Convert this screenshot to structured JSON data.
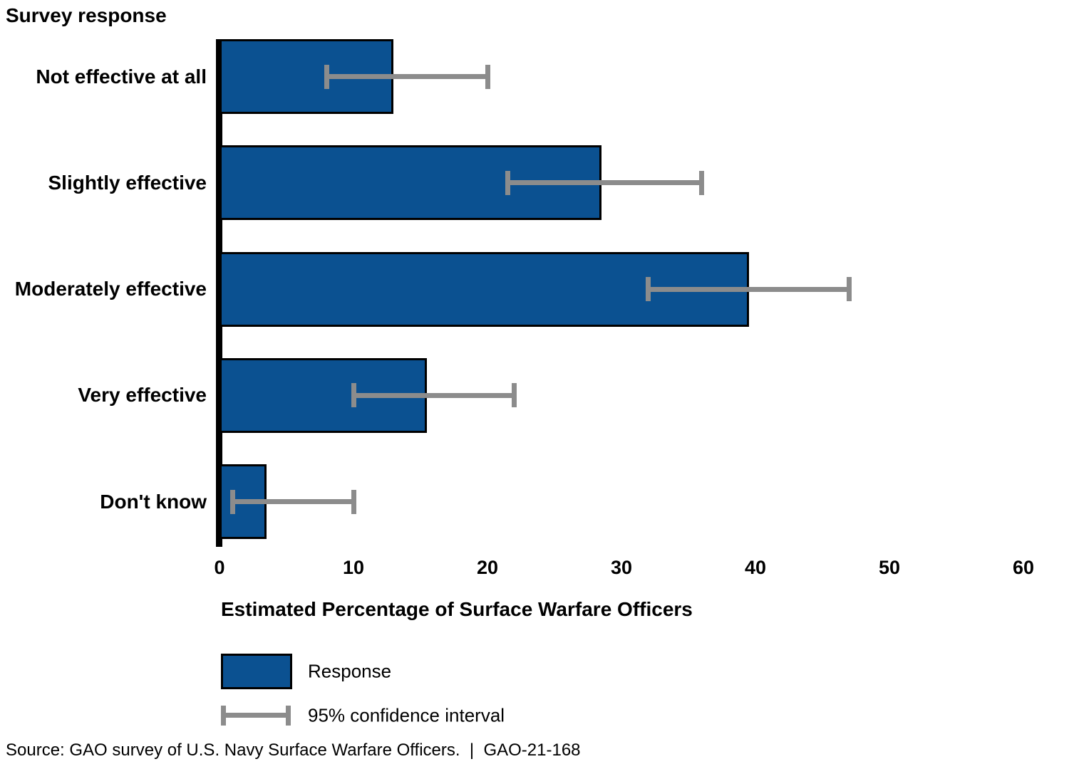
{
  "chart_data": {
    "type": "bar",
    "orientation": "horizontal",
    "title": "Survey response",
    "xlabel": "Estimated Percentage of Surface Warfare Officers",
    "xlim": [
      0,
      60
    ],
    "xticks": [
      0,
      10,
      20,
      30,
      40,
      50,
      60
    ],
    "grid": false,
    "categories": [
      "Not effective at all",
      "Slightly effective",
      "Moderately effective",
      "Very effective",
      "Don't know"
    ],
    "series": [
      {
        "name": "Response",
        "values": [
          13,
          28.5,
          39.5,
          15.5,
          3.5
        ]
      },
      {
        "name": "95% confidence interval",
        "ci_low": [
          8,
          21.5,
          32,
          10,
          1
        ],
        "ci_high": [
          20,
          36,
          47,
          22,
          10
        ]
      }
    ],
    "legend": [
      {
        "label": "Response",
        "type": "bar-swatch"
      },
      {
        "label": "95% confidence interval",
        "type": "error-bar-sample"
      }
    ],
    "colors": {
      "bar_fill": "#0B5191",
      "bar_border": "#000000",
      "error_bar": "#8C8C8C",
      "axis": "#000000",
      "text": "#000000",
      "background": "#ffffff"
    },
    "legend_position": "bottom-left"
  },
  "footer": {
    "source": "Source: GAO survey of U.S. Navy Surface Warfare Officers.  |  GAO-21-168"
  }
}
